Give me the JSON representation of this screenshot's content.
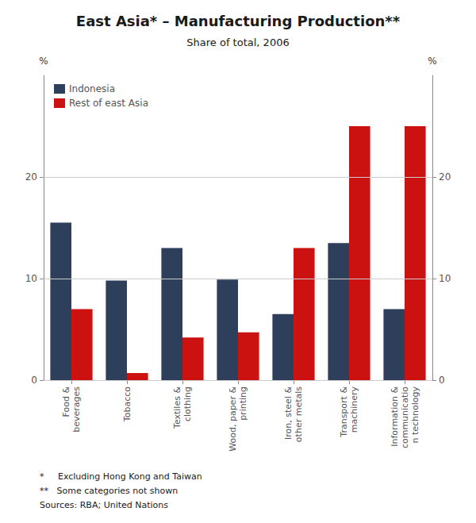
{
  "chart_data": {
    "type": "bar",
    "title": "East Asia* – Manufacturing Production**",
    "subtitle": "Share of total, 2006",
    "ylabel": "%",
    "y2label": "%",
    "categories": [
      "Food &\nbeverages",
      "Tobacco",
      "Textiles &\nclothing",
      "Wood, paper &\nprinting",
      "Iron, steel &\nother metals",
      "Transport &\nmachinery",
      "Information &\ncommunicatio\nn technology"
    ],
    "series": [
      {
        "name": "Indonesia",
        "color": "#2e3f5c",
        "values": [
          15.5,
          9.8,
          13.0,
          9.9,
          6.5,
          13.5,
          7.0
        ]
      },
      {
        "name": "Rest of east Asia",
        "color": "#cc1111",
        "values": [
          7.0,
          0.7,
          4.2,
          4.7,
          13.0,
          25.0,
          25.0
        ]
      }
    ],
    "ylim": [
      0,
      30
    ],
    "yticks": [
      0,
      10,
      20
    ],
    "y2lim": [
      0,
      30
    ],
    "y2ticks": [
      0,
      10,
      20
    ],
    "grid": true,
    "legend": "upper left",
    "footnotes": [
      "*     Excluding Hong Kong and Taiwan",
      "**   Some categories not shown",
      "Sources: RBA; United Nations"
    ]
  }
}
